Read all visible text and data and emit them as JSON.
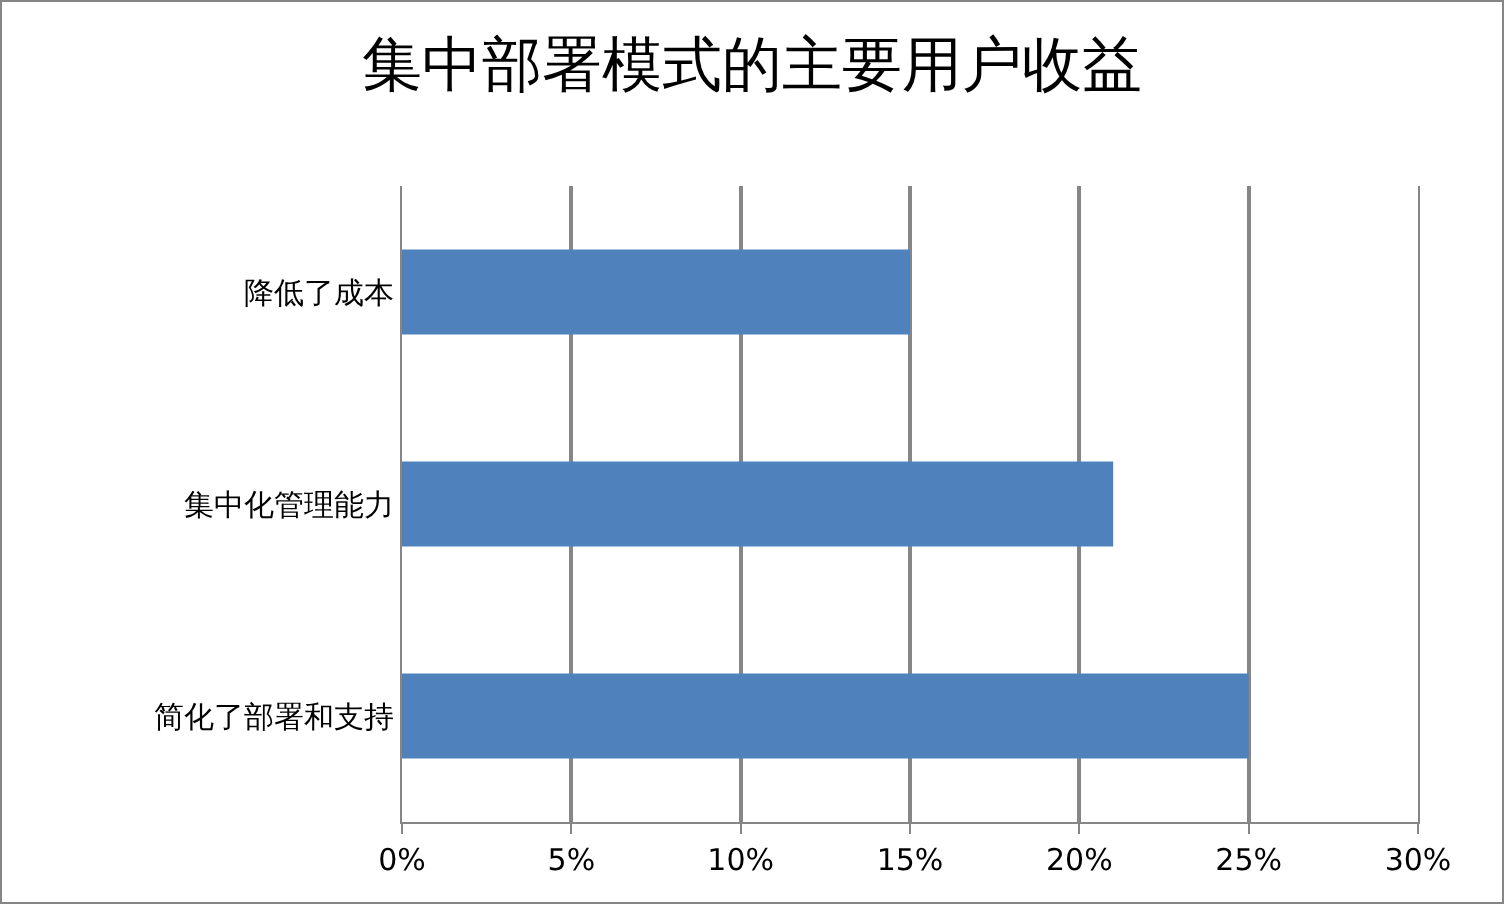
{
  "chart_data": {
    "type": "bar",
    "orientation": "horizontal",
    "title": "集中部署模式的主要用户收益",
    "categories": [
      "降低了成本",
      "集中化管理能力",
      "简化了部署和支持"
    ],
    "values": [
      15,
      21,
      25
    ],
    "color": "#4f81bd",
    "xlim": [
      0,
      30
    ],
    "xticks": [
      {
        "value": 0,
        "label": "0%"
      },
      {
        "value": 5,
        "label": "5%"
      },
      {
        "value": 10,
        "label": "10%"
      },
      {
        "value": 15,
        "label": "15%"
      },
      {
        "value": 20,
        "label": "20%"
      },
      {
        "value": 25,
        "label": "25%"
      },
      {
        "value": 30,
        "label": "30%"
      }
    ],
    "grid": "x"
  }
}
